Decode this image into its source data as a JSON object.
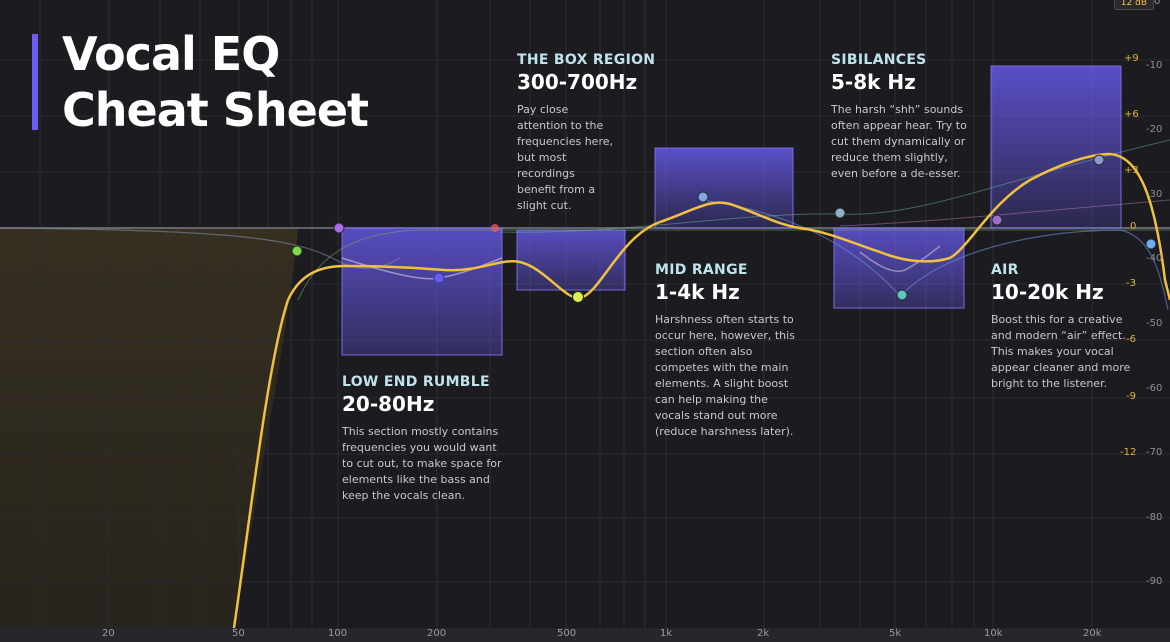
{
  "title_lines": [
    "Vocal EQ",
    "Cheat Sheet"
  ],
  "db_range_badge": "12 dB",
  "sections": [
    {
      "id": "low",
      "label": "LOW END RUMBLE",
      "range": "20-80Hz",
      "description": "This section mostly contains frequencies you would want to cut out, to make space for elements like the bass and keep the vocals clean."
    },
    {
      "id": "box",
      "label": "THE BOX REGION",
      "range": "300-700Hz",
      "description": "Pay close attention to the frequencies here, but most recordings benefit from a slight cut."
    },
    {
      "id": "mid",
      "label": "MID RANGE",
      "range": "1-4k Hz",
      "description": "Harshness often starts to occur here, however, this section often also competes with the main elements. A slight boost can help making the vocals stand out more (reduce harshness later)."
    },
    {
      "id": "sib",
      "label": "SIBILANCES",
      "range": "5-8k Hz",
      "description": "The harsh “shh” sounds often appear hear. Try to cut them dynamically or reduce them slightly, even before a de-esser."
    },
    {
      "id": "air",
      "label": "AIR",
      "range": "10-20k Hz",
      "description": "Boost this for a creative and modern “air” effect. This makes your vocal appear cleaner and more bright to the listener."
    }
  ],
  "freq_ticks": [
    "20",
    "50",
    "100",
    "200",
    "500",
    "1k",
    "2k",
    "5k",
    "10k",
    "20k"
  ],
  "gain_ticks": [
    "+9",
    "+6",
    "+3",
    "0",
    "-3",
    "-6",
    "-9",
    "-12"
  ],
  "analyzer_ticks": [
    "0",
    "-10",
    "-20",
    "-30",
    "-40",
    "-50",
    "-60",
    "-70",
    "-80",
    "-90"
  ],
  "colors": {
    "background": "#1b1b20",
    "eq_curve": "#f0c040",
    "band_fill": "#6a5cf0",
    "title_accent": "#6d5cf0",
    "low_cut_fill": "#3a3220"
  }
}
